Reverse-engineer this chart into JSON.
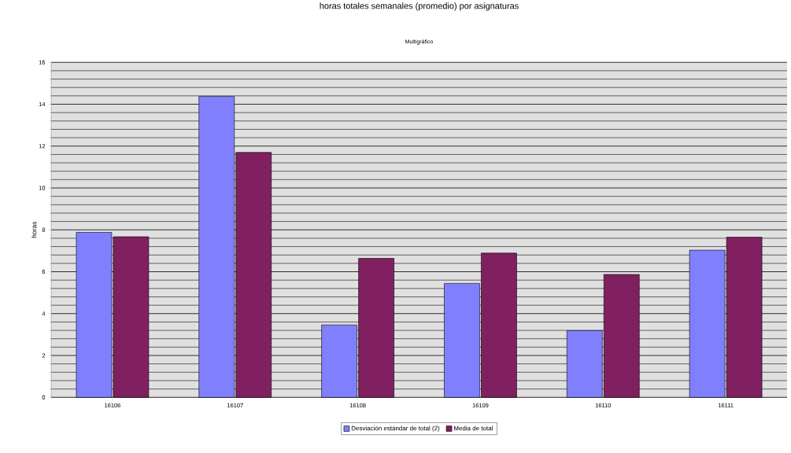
{
  "chart_data": {
    "type": "bar",
    "title": "horas totales semanales (promedio) por asignaturas",
    "subtitle": "Multigráfico",
    "ylabel": "horas",
    "categories": [
      "16106",
      "16107",
      "16108",
      "16109",
      "16110",
      "16111"
    ],
    "series": [
      {
        "name": "Desviación estándar de total (2)",
        "color": "#8080ff",
        "values": [
          7.88,
          14.37,
          3.46,
          5.44,
          3.19,
          7.03
        ]
      },
      {
        "name": "Media de total",
        "color": "#802060",
        "values": [
          7.67,
          11.7,
          6.64,
          6.89,
          5.87,
          7.65
        ]
      }
    ],
    "ylim": [
      0,
      16
    ],
    "yticks": [
      0,
      2,
      4,
      6,
      8,
      10,
      12,
      14,
      16
    ],
    "grid": "y",
    "legend": "bottom"
  }
}
